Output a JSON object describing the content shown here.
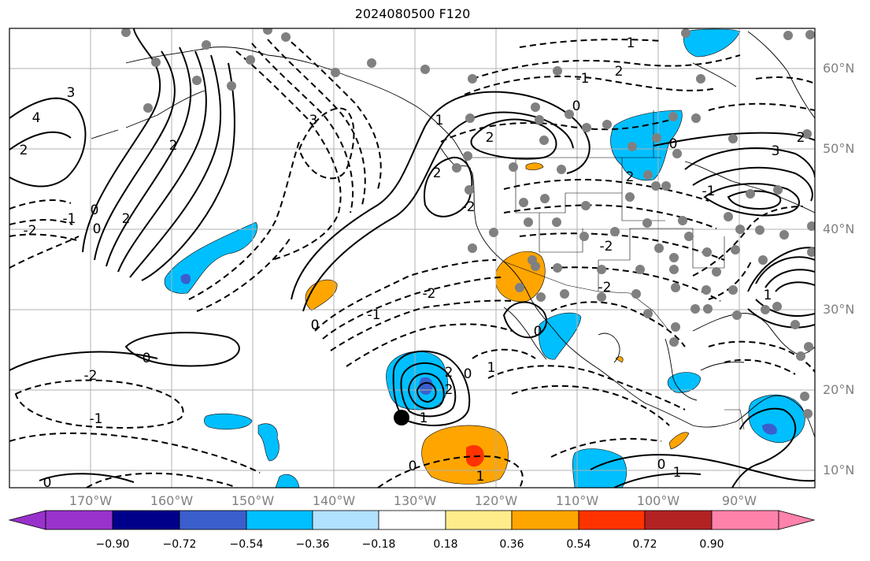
{
  "title": "2024080500 F120",
  "map": {
    "lat_labels": [
      "60°N",
      "50°N",
      "40°N",
      "30°N",
      "20°N",
      "10°N"
    ],
    "lon_labels": [
      "170°W",
      "160°W",
      "150°W",
      "140°W",
      "130°W",
      "120°W",
      "110°W",
      "100°W",
      "90°W"
    ],
    "contour_labels": [
      "3",
      "4",
      "2",
      "2",
      "3",
      "2",
      "0",
      "-2",
      "-1",
      "0",
      "0",
      "2",
      "2",
      "-2",
      "-2",
      "-1",
      "0",
      "-2",
      "-1",
      "1",
      "1",
      "0",
      "0",
      "1",
      "2",
      "2",
      "-2",
      "0",
      "-2",
      "3",
      "2",
      "0",
      "1",
      "2",
      "-1",
      "0",
      "-1",
      "0",
      "1",
      "2",
      "1",
      "0",
      "1"
    ],
    "colors": {
      "positive_fill": "#ffa500",
      "positive_strong": "#ff3300",
      "negative_fill": "#00bfff",
      "negative_strong": "#3a5fcd",
      "grid": "#b0b0b0",
      "dots": "#808080"
    }
  },
  "colorbar": {
    "ticks": [
      "−0.90",
      "−0.72",
      "−0.54",
      "−0.36",
      "−0.18",
      "0.18",
      "0.36",
      "0.54",
      "0.72",
      "0.90"
    ],
    "colors": [
      "#9932cc",
      "#00008b",
      "#3a5fcd",
      "#00bfff",
      "#b0e2ff",
      "#ffffff",
      "#ffec8b",
      "#ffa500",
      "#ff3300",
      "#b22222",
      "#ff82ab"
    ]
  }
}
